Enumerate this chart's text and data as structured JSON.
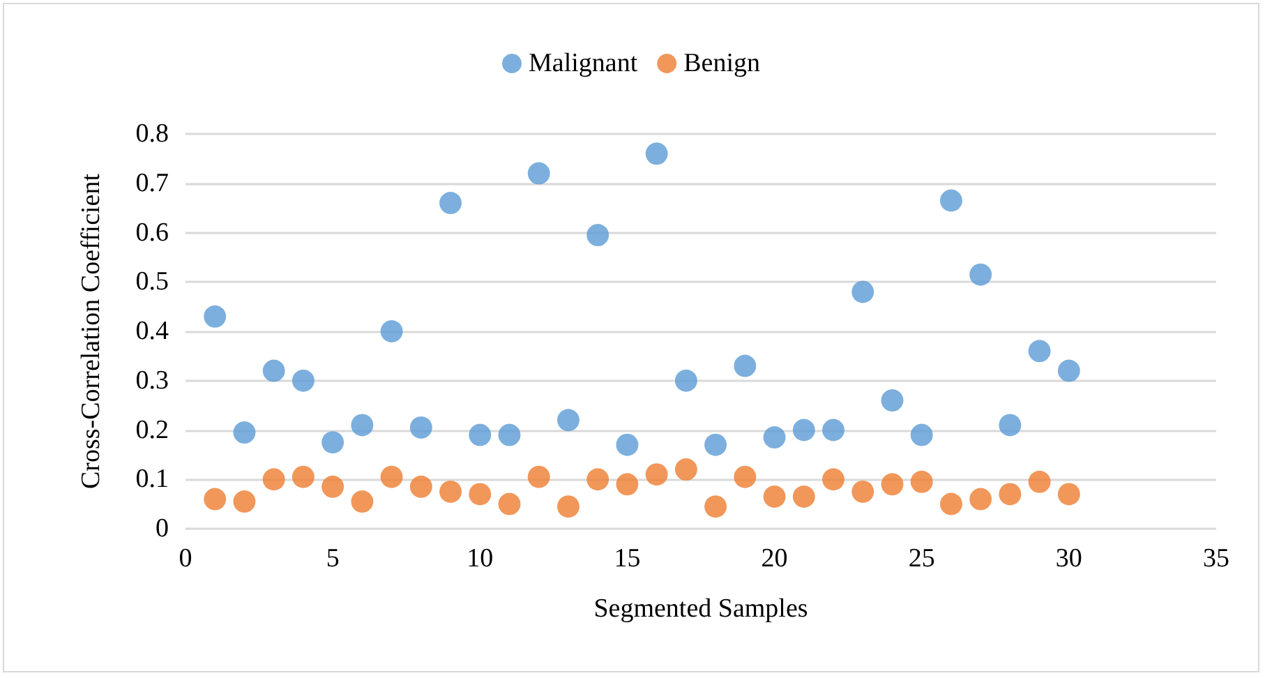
{
  "chart_data": {
    "type": "scatter",
    "xlabel": "Segmented Samples",
    "ylabel": "Cross-Correlation Coefficient",
    "x": [
      1,
      2,
      3,
      4,
      5,
      6,
      7,
      8,
      9,
      10,
      11,
      12,
      13,
      14,
      15,
      16,
      17,
      18,
      19,
      20,
      21,
      22,
      23,
      24,
      25,
      26,
      27,
      28,
      29,
      30
    ],
    "series": [
      {
        "name": "Malignant",
        "color": "#5b9bd5",
        "values": [
          0.43,
          0.195,
          0.32,
          0.3,
          0.175,
          0.21,
          0.4,
          0.205,
          0.66,
          0.19,
          0.19,
          0.72,
          0.22,
          0.595,
          0.17,
          0.76,
          0.3,
          0.17,
          0.33,
          0.185,
          0.2,
          0.2,
          0.48,
          0.26,
          0.19,
          0.665,
          0.515,
          0.21,
          0.36,
          0.32
        ]
      },
      {
        "name": "Benign",
        "color": "#ed7d31",
        "values": [
          0.06,
          0.055,
          0.1,
          0.105,
          0.085,
          0.055,
          0.105,
          0.085,
          0.075,
          0.07,
          0.05,
          0.105,
          0.045,
          0.1,
          0.09,
          0.11,
          0.12,
          0.045,
          0.105,
          0.065,
          0.065,
          0.1,
          0.075,
          0.09,
          0.095,
          0.05,
          0.06,
          0.07,
          0.095,
          0.07
        ]
      }
    ],
    "xlim": [
      0,
      35
    ],
    "xticks": [
      0,
      5,
      10,
      15,
      20,
      25,
      30,
      35
    ],
    "ylim": [
      0,
      0.8
    ],
    "yticks": [
      0,
      0.1,
      0.2,
      0.3,
      0.4,
      0.5,
      0.6,
      0.7,
      0.8
    ],
    "grid": "y",
    "legend": "top",
    "marker": "circle"
  }
}
